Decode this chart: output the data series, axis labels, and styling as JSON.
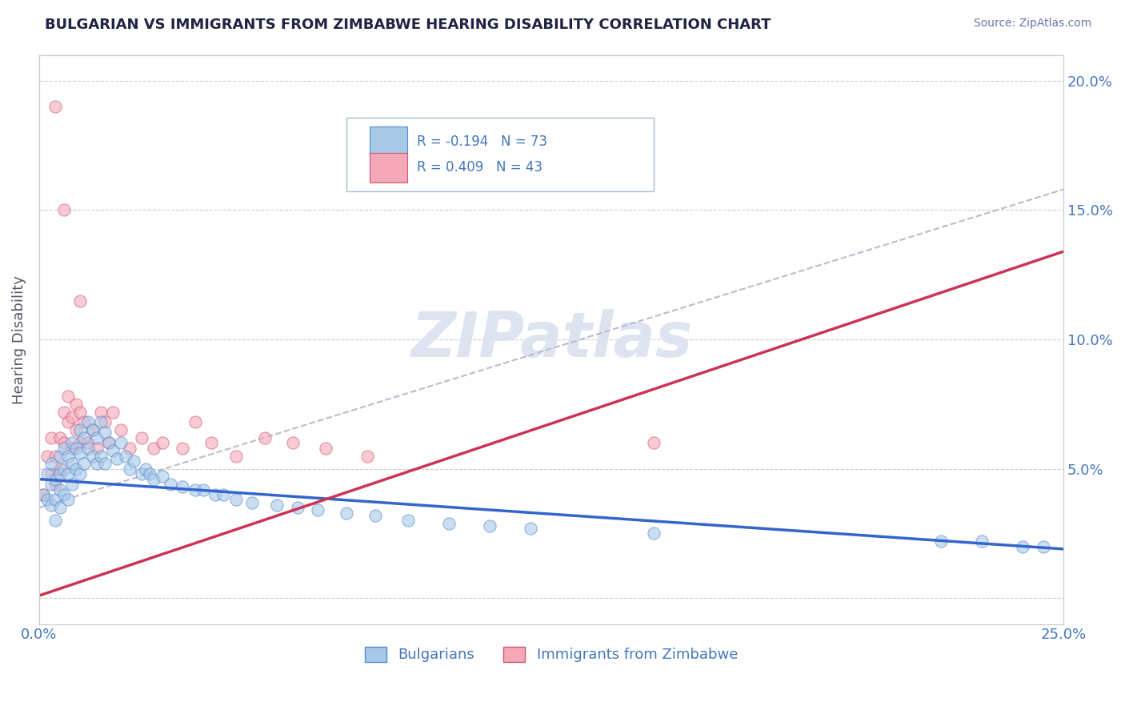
{
  "title": "BULGARIAN VS IMMIGRANTS FROM ZIMBABWE HEARING DISABILITY CORRELATION CHART",
  "source": "Source: ZipAtlas.com",
  "ylabel": "Hearing Disability",
  "xlim": [
    0.0,
    0.25
  ],
  "ylim": [
    -0.01,
    0.21
  ],
  "xticks": [
    0.0,
    0.05,
    0.1,
    0.15,
    0.2,
    0.25
  ],
  "xticklabels": [
    "0.0%",
    "",
    "",
    "",
    "",
    "25.0%"
  ],
  "yticks": [
    0.0,
    0.05,
    0.1,
    0.15,
    0.2
  ],
  "yticklabels_left": [
    "",
    "",
    "",
    "",
    ""
  ],
  "yticklabels_right": [
    "",
    "5.0%",
    "10.0%",
    "15.0%",
    "20.0%"
  ],
  "bulgarian_color": "#a8c8e8",
  "bulgarian_edge": "#5588cc",
  "zimbabwe_color": "#f4a8b8",
  "zimbabwe_edge": "#cc5577",
  "blue_line_color": "#3366cc",
  "pink_line_color": "#cc3355",
  "dashed_line_color": "#bbbbcc",
  "watermark": "ZIPatlas",
  "watermark_color": "#dde4f0",
  "background_color": "#ffffff",
  "grid_color": "#cccccc",
  "title_color": "#222244",
  "tick_color": "#4477bb",
  "legend_bg": "#ffffff",
  "legend_edge": "#cccccc",
  "bulgarian_R": -0.194,
  "bulgarian_N": 73,
  "zimbabwe_R": 0.409,
  "zimbabwe_N": 43,
  "blue_line_x0": 0.0,
  "blue_line_y0": 0.046,
  "blue_line_x1": 0.25,
  "blue_line_y1": 0.019,
  "pink_line_x0": 0.0,
  "pink_line_y0": 0.001,
  "pink_line_x1": 0.25,
  "pink_line_y1": 0.134,
  "dash_line_x0": 0.0,
  "dash_line_y0": 0.035,
  "dash_line_x1": 0.25,
  "dash_line_y1": 0.158,
  "bulgarian_x": [
    0.001,
    0.002,
    0.002,
    0.003,
    0.003,
    0.003,
    0.004,
    0.004,
    0.004,
    0.005,
    0.005,
    0.005,
    0.005,
    0.006,
    0.006,
    0.006,
    0.007,
    0.007,
    0.007,
    0.008,
    0.008,
    0.008,
    0.009,
    0.009,
    0.01,
    0.01,
    0.01,
    0.011,
    0.011,
    0.012,
    0.012,
    0.013,
    0.013,
    0.014,
    0.014,
    0.015,
    0.015,
    0.016,
    0.016,
    0.017,
    0.018,
    0.019,
    0.02,
    0.021,
    0.022,
    0.023,
    0.025,
    0.026,
    0.027,
    0.028,
    0.03,
    0.032,
    0.035,
    0.038,
    0.04,
    0.043,
    0.045,
    0.048,
    0.052,
    0.058,
    0.063,
    0.068,
    0.075,
    0.082,
    0.09,
    0.1,
    0.11,
    0.12,
    0.15,
    0.22,
    0.23,
    0.24,
    0.245
  ],
  "bulgarian_y": [
    0.04,
    0.048,
    0.038,
    0.052,
    0.044,
    0.036,
    0.046,
    0.038,
    0.03,
    0.055,
    0.048,
    0.042,
    0.035,
    0.058,
    0.05,
    0.04,
    0.055,
    0.048,
    0.038,
    0.06,
    0.052,
    0.044,
    0.058,
    0.05,
    0.065,
    0.056,
    0.048,
    0.062,
    0.052,
    0.068,
    0.058,
    0.065,
    0.055,
    0.062,
    0.052,
    0.068,
    0.055,
    0.064,
    0.052,
    0.06,
    0.057,
    0.054,
    0.06,
    0.055,
    0.05,
    0.053,
    0.048,
    0.05,
    0.048,
    0.046,
    0.047,
    0.044,
    0.043,
    0.042,
    0.042,
    0.04,
    0.04,
    0.038,
    0.037,
    0.036,
    0.035,
    0.034,
    0.033,
    0.032,
    0.03,
    0.029,
    0.028,
    0.027,
    0.025,
    0.022,
    0.022,
    0.02,
    0.02
  ],
  "zimbabwe_x": [
    0.001,
    0.002,
    0.003,
    0.003,
    0.004,
    0.004,
    0.005,
    0.005,
    0.006,
    0.006,
    0.007,
    0.007,
    0.008,
    0.008,
    0.009,
    0.009,
    0.01,
    0.01,
    0.011,
    0.012,
    0.013,
    0.014,
    0.015,
    0.016,
    0.017,
    0.018,
    0.02,
    0.022,
    0.025,
    0.028,
    0.03,
    0.035,
    0.038,
    0.042,
    0.048,
    0.055,
    0.062,
    0.07,
    0.08,
    0.15,
    0.01,
    0.006,
    0.004
  ],
  "zimbabwe_y": [
    0.04,
    0.055,
    0.048,
    0.062,
    0.044,
    0.055,
    0.05,
    0.062,
    0.06,
    0.072,
    0.068,
    0.078,
    0.058,
    0.07,
    0.065,
    0.075,
    0.06,
    0.072,
    0.068,
    0.06,
    0.065,
    0.058,
    0.072,
    0.068,
    0.06,
    0.072,
    0.065,
    0.058,
    0.062,
    0.058,
    0.06,
    0.058,
    0.068,
    0.06,
    0.055,
    0.062,
    0.06,
    0.058,
    0.055,
    0.06,
    0.115,
    0.15,
    0.19
  ]
}
